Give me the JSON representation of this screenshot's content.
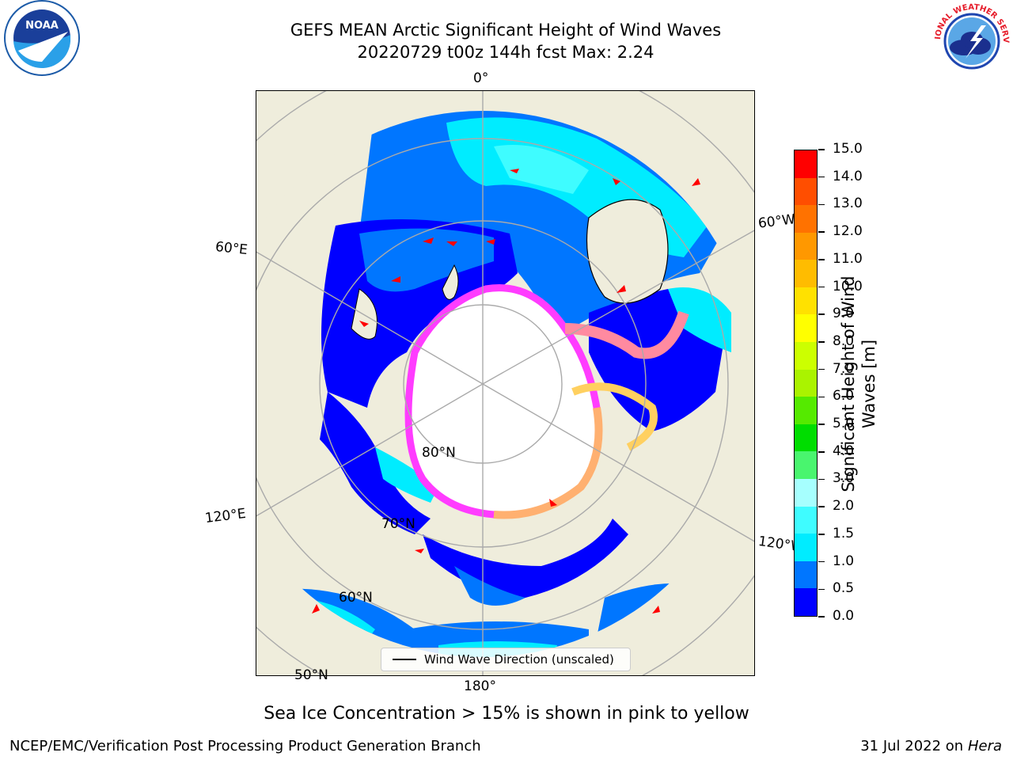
{
  "title": {
    "line1": "GEFS MEAN Arctic Significant Height of Wind Waves",
    "line2": "20220729 t00z 144h fcst   Max: 2.24"
  },
  "map": {
    "projection": "north-polar-stereographic",
    "land_color": "#efeddc",
    "ocean_no_data_color": "#ffffff",
    "ice_colors": [
      "#ff3cff",
      "#ff8aa0",
      "#ffb070",
      "#ffd060"
    ],
    "longitude_labels": {
      "top": "0°",
      "left_upper": "60°E",
      "left_lower": "120°E",
      "bottom": "180°",
      "right_upper": "60°W",
      "right_lower": "120°W"
    },
    "latitude_labels": {
      "lat80": "80°N",
      "lat70": "70°N",
      "lat60": "60°N",
      "lat50": "50°N"
    }
  },
  "colorbar": {
    "title": "Significant Height of Wind Waves [m]",
    "tick_labels": [
      "0.0",
      "0.5",
      "1.0",
      "1.5",
      "2.0",
      "3.0",
      "4.0",
      "5.0",
      "6.0",
      "7.0",
      "8.0",
      "9.0",
      "10.0",
      "11.0",
      "12.0",
      "13.0",
      "14.0",
      "15.0"
    ],
    "colors": [
      "#0000ff",
      "#0076ff",
      "#00ecff",
      "#3ffcff",
      "#a6fffe",
      "#49f56e",
      "#00dd00",
      "#55ea00",
      "#aaf300",
      "#ccff00",
      "#ffff00",
      "#ffe100",
      "#ffbc00",
      "#ff9800",
      "#ff7200",
      "#ff4e00",
      "#ff0000"
    ]
  },
  "legend": {
    "label": "Wind Wave Direction (unscaled)"
  },
  "caption": "Sea Ice Concentration > 15% is shown in pink to yellow",
  "footer": {
    "left": "NCEP/EMC/Verification Post Processing Product Generation Branch",
    "right_prefix": "31 Jul 2022 on ",
    "right_italic": "Hera"
  },
  "logos": {
    "left": "NOAA",
    "right": "NATIONAL WEATHER SERVICE"
  },
  "wave_colors": {
    "low": "#0000ff",
    "mid": "#0076ff",
    "high": "#00ecff",
    "higher": "#3ffcff",
    "arrow": "#ff0000"
  }
}
